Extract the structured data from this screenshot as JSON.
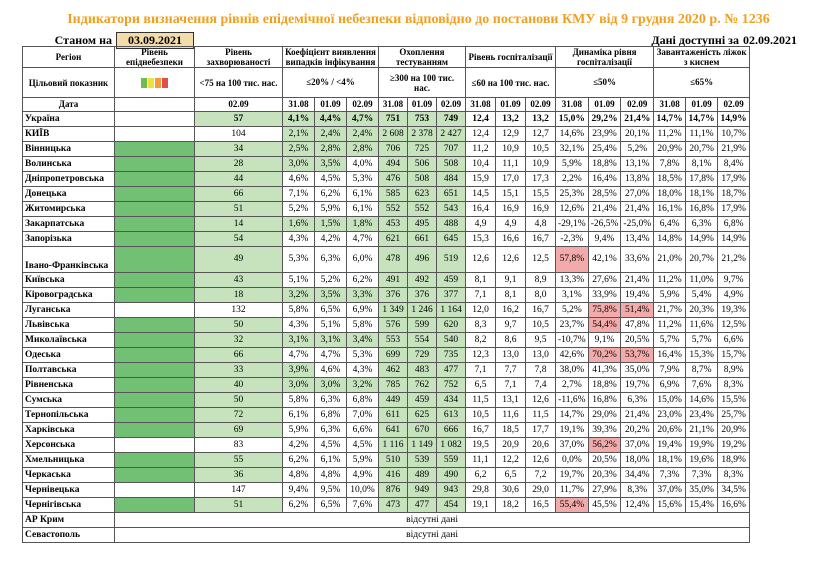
{
  "title": "Індикатори визначення рівнів епідемічної небезпеки відповідно до постанови КМУ від 9 грудня 2020 р. № 1236",
  "as_of_label": "Станом на",
  "as_of_date": "03.09.2021",
  "available_label": "Дані доступні за",
  "available_date": "02.09.2021",
  "headers": {
    "region": "Регіон",
    "level": "Рівень епіднебезпеки",
    "incidence": "Рівень захворюваності",
    "detection": "Коефіцієнт виявлення випадків інфікування",
    "testing": "Охоплення тестуванням",
    "hosp": "Рівень госпіталізації",
    "dynamics": "Динаміка рівня госпіталізації",
    "beds": "Завантаженість ліжок з киснем",
    "target_label": "Цільовий показник",
    "target_incidence": "<75 на 100 тис. нас.",
    "target_detection": "≤20% / <4%",
    "target_testing": "≥300 на 100 тис. нас.",
    "target_hosp": "≤60 на 100 тис. нас.",
    "target_dynamics": "≤50%",
    "target_beds": "≤65%",
    "date_label": "Дата",
    "inc_date": "02.09",
    "dates": [
      "31.08",
      "01.09",
      "02.09"
    ]
  },
  "indicator_colors": [
    "#6cc04a",
    "#f2e03a",
    "#f39a3a",
    "#e0504a"
  ],
  "ukraine": {
    "name": "Україна",
    "inc": "57",
    "det": [
      "4,1%",
      "4,4%",
      "4,7%"
    ],
    "test": [
      "751",
      "753",
      "749"
    ],
    "hosp": [
      "12,4",
      "13,2",
      "13,2"
    ],
    "dyn": [
      "15,0%",
      "29,2%",
      "21,4%"
    ],
    "beds": [
      "14,7%",
      "14,7%",
      "14,9%"
    ]
  },
  "regions": [
    {
      "name": "КИЇВ",
      "lvl": "gray",
      "inc": "104",
      "det": [
        "2,1%",
        "2,4%",
        "2,4%"
      ],
      "test": [
        "2 608",
        "2 378",
        "2 427"
      ],
      "hosp": [
        "12,4",
        "12,9",
        "12,7"
      ],
      "dyn": [
        "14,6%",
        "23,9%",
        "20,1%"
      ],
      "beds": [
        "11,2%",
        "11,1%",
        "10,7%"
      ]
    },
    {
      "name": "Вінницька",
      "inc": "34",
      "det": [
        "2,5%",
        "2,8%",
        "2,8%"
      ],
      "test": [
        "706",
        "725",
        "707"
      ],
      "hosp": [
        "11,2",
        "10,9",
        "10,5"
      ],
      "dyn": [
        "32,1%",
        "25,4%",
        "5,2%"
      ],
      "beds": [
        "20,9%",
        "20,7%",
        "21,9%"
      ]
    },
    {
      "name": "Волинська",
      "inc": "28",
      "det": [
        "3,0%",
        "3,5%",
        "4,0%"
      ],
      "test": [
        "494",
        "506",
        "508"
      ],
      "hosp": [
        "10,4",
        "11,1",
        "10,9"
      ],
      "dyn": [
        "5,9%",
        "18,8%",
        "13,1%"
      ],
      "beds": [
        "7,8%",
        "8,1%",
        "8,4%"
      ]
    },
    {
      "name": "Дніпропетровська",
      "inc": "44",
      "det": [
        "4,6%",
        "4,5%",
        "5,3%"
      ],
      "test": [
        "476",
        "508",
        "484"
      ],
      "hosp": [
        "15,9",
        "17,0",
        "17,3"
      ],
      "dyn": [
        "2,2%",
        "16,4%",
        "13,8%"
      ],
      "beds": [
        "18,5%",
        "17,8%",
        "17,9%"
      ]
    },
    {
      "name": "Донецька",
      "inc": "66",
      "det": [
        "7,1%",
        "6,2%",
        "6,1%"
      ],
      "test": [
        "585",
        "623",
        "651"
      ],
      "hosp": [
        "14,5",
        "15,1",
        "15,5"
      ],
      "dyn": [
        "25,3%",
        "28,5%",
        "27,0%"
      ],
      "beds": [
        "18,0%",
        "18,1%",
        "18,7%"
      ]
    },
    {
      "name": "Житомирська",
      "inc": "51",
      "det": [
        "5,2%",
        "5,9%",
        "6,1%"
      ],
      "test": [
        "552",
        "552",
        "543"
      ],
      "hosp": [
        "16,4",
        "16,9",
        "16,9"
      ],
      "dyn": [
        "12,6%",
        "21,4%",
        "21,4%"
      ],
      "beds": [
        "16,1%",
        "16,8%",
        "17,9%"
      ]
    },
    {
      "name": "Закарпатська",
      "inc": "14",
      "det": [
        "1,6%",
        "1,5%",
        "1,8%"
      ],
      "test": [
        "453",
        "495",
        "488"
      ],
      "hosp": [
        "4,9",
        "4,9",
        "4,8"
      ],
      "dyn": [
        "-29,1%",
        "-26,5%",
        "-25,0%"
      ],
      "beds": [
        "6,4%",
        "6,3%",
        "6,8%"
      ]
    },
    {
      "name": "Запорізька",
      "inc": "54",
      "det": [
        "4,3%",
        "4,2%",
        "4,7%"
      ],
      "test": [
        "621",
        "661",
        "645"
      ],
      "hosp": [
        "15,3",
        "16,6",
        "16,7"
      ],
      "dyn": [
        "-2,3%",
        "9,4%",
        "13,4%"
      ],
      "beds": [
        "14,8%",
        "14,9%",
        "14,9%"
      ]
    },
    {
      "name": "Івано-Франківська",
      "inc": "49",
      "det": [
        "5,3%",
        "6,3%",
        "6,0%"
      ],
      "test": [
        "478",
        "496",
        "519"
      ],
      "hosp": [
        "12,6",
        "12,6",
        "12,5"
      ],
      "dyn": [
        "57,8%",
        "42,1%",
        "33,6%"
      ],
      "beds": [
        "21,0%",
        "20,7%",
        "21,2%"
      ]
    },
    {
      "name": "Київська",
      "inc": "43",
      "det": [
        "5,1%",
        "5,2%",
        "6,2%"
      ],
      "test": [
        "491",
        "492",
        "459"
      ],
      "hosp": [
        "8,1",
        "9,1",
        "8,9"
      ],
      "dyn": [
        "13,3%",
        "27,6%",
        "21,4%"
      ],
      "beds": [
        "11,2%",
        "11,0%",
        "9,7%"
      ]
    },
    {
      "name": "Кіровоградська",
      "inc": "18",
      "det": [
        "3,2%",
        "3,5%",
        "3,3%"
      ],
      "test": [
        "376",
        "376",
        "377"
      ],
      "hosp": [
        "7,1",
        "8,1",
        "8,0"
      ],
      "dyn": [
        "3,1%",
        "33,9%",
        "19,4%"
      ],
      "beds": [
        "5,9%",
        "5,4%",
        "4,9%"
      ]
    },
    {
      "name": "Луганська",
      "lvl": "gray",
      "inc": "132",
      "det": [
        "5,8%",
        "6,5%",
        "6,9%"
      ],
      "test": [
        "1 349",
        "1 246",
        "1 164"
      ],
      "hosp": [
        "12,0",
        "16,2",
        "16,7"
      ],
      "dyn": [
        "5,2%",
        "75,8%",
        "51,4%"
      ],
      "beds": [
        "21,7%",
        "20,3%",
        "19,3%"
      ]
    },
    {
      "name": "Львівська",
      "inc": "50",
      "det": [
        "4,3%",
        "5,1%",
        "5,8%"
      ],
      "test": [
        "576",
        "599",
        "620"
      ],
      "hosp": [
        "8,3",
        "9,7",
        "10,5"
      ],
      "dyn": [
        "23,7%",
        "54,4%",
        "47,8%"
      ],
      "beds": [
        "11,2%",
        "11,6%",
        "12,5%"
      ]
    },
    {
      "name": "Миколаївська",
      "inc": "32",
      "det": [
        "3,1%",
        "3,1%",
        "3,4%"
      ],
      "test": [
        "553",
        "554",
        "540"
      ],
      "hosp": [
        "8,2",
        "8,6",
        "9,5"
      ],
      "dyn": [
        "-10,7%",
        "9,1%",
        "20,5%"
      ],
      "beds": [
        "5,7%",
        "5,7%",
        "6,6%"
      ]
    },
    {
      "name": "Одеська",
      "inc": "66",
      "det": [
        "4,7%",
        "4,7%",
        "5,3%"
      ],
      "test": [
        "699",
        "729",
        "735"
      ],
      "hosp": [
        "12,3",
        "13,0",
        "13,0"
      ],
      "dyn": [
        "42,6%",
        "70,2%",
        "53,7%"
      ],
      "beds": [
        "16,4%",
        "15,3%",
        "15,7%"
      ]
    },
    {
      "name": "Полтавська",
      "inc": "33",
      "det": [
        "3,9%",
        "4,6%",
        "4,3%"
      ],
      "test": [
        "462",
        "483",
        "477"
      ],
      "hosp": [
        "7,1",
        "7,7",
        "7,8"
      ],
      "dyn": [
        "38,0%",
        "41,3%",
        "35,0%"
      ],
      "beds": [
        "7,9%",
        "8,7%",
        "8,9%"
      ]
    },
    {
      "name": "Рівненська",
      "inc": "40",
      "det": [
        "3,0%",
        "3,0%",
        "3,2%"
      ],
      "test": [
        "785",
        "762",
        "752"
      ],
      "hosp": [
        "6,5",
        "7,1",
        "7,4"
      ],
      "dyn": [
        "2,7%",
        "18,8%",
        "19,7%"
      ],
      "beds": [
        "6,9%",
        "7,6%",
        "8,3%"
      ]
    },
    {
      "name": "Сумська",
      "inc": "50",
      "det": [
        "5,8%",
        "6,3%",
        "6,8%"
      ],
      "test": [
        "449",
        "459",
        "434"
      ],
      "hosp": [
        "11,5",
        "13,1",
        "12,6"
      ],
      "dyn": [
        "-11,6%",
        "16,8%",
        "6,3%"
      ],
      "beds": [
        "15,0%",
        "14,6%",
        "15,5%"
      ]
    },
    {
      "name": "Тернопільська",
      "inc": "72",
      "det": [
        "6,1%",
        "6,8%",
        "7,0%"
      ],
      "test": [
        "611",
        "625",
        "613"
      ],
      "hosp": [
        "10,5",
        "11,6",
        "11,5"
      ],
      "dyn": [
        "14,7%",
        "29,0%",
        "21,4%"
      ],
      "beds": [
        "23,0%",
        "23,4%",
        "25,7%"
      ]
    },
    {
      "name": "Харківська",
      "inc": "69",
      "det": [
        "5,9%",
        "6,3%",
        "6,6%"
      ],
      "test": [
        "641",
        "670",
        "666"
      ],
      "hosp": [
        "16,7",
        "18,5",
        "17,7"
      ],
      "dyn": [
        "19,1%",
        "39,3%",
        "20,2%"
      ],
      "beds": [
        "20,6%",
        "21,1%",
        "20,9%"
      ]
    },
    {
      "name": "Херсонська",
      "lvl": "gray",
      "inc": "83",
      "det": [
        "4,2%",
        "4,5%",
        "4,5%"
      ],
      "test": [
        "1 116",
        "1 149",
        "1 082"
      ],
      "hosp": [
        "19,5",
        "20,9",
        "20,6"
      ],
      "dyn": [
        "37,0%",
        "56,2%",
        "37,0%"
      ],
      "beds": [
        "19,4%",
        "19,9%",
        "19,2%"
      ]
    },
    {
      "name": "Хмельницька",
      "inc": "55",
      "det": [
        "6,2%",
        "6,1%",
        "5,9%"
      ],
      "test": [
        "510",
        "539",
        "559"
      ],
      "hosp": [
        "11,1",
        "12,2",
        "12,6"
      ],
      "dyn": [
        "0,0%",
        "20,5%",
        "18,0%"
      ],
      "beds": [
        "18,1%",
        "19,6%",
        "18,9%"
      ]
    },
    {
      "name": "Черкаська",
      "inc": "36",
      "det": [
        "4,8%",
        "4,8%",
        "4,9%"
      ],
      "test": [
        "416",
        "489",
        "490"
      ],
      "hosp": [
        "6,2",
        "6,5",
        "7,2"
      ],
      "dyn": [
        "19,7%",
        "20,3%",
        "34,4%"
      ],
      "beds": [
        "7,3%",
        "7,3%",
        "8,3%"
      ]
    },
    {
      "name": "Чернівецька",
      "lvl": "gray",
      "inc": "147",
      "det": [
        "9,4%",
        "9,5%",
        "10,0%"
      ],
      "test": [
        "876",
        "949",
        "943"
      ],
      "hosp": [
        "29,8",
        "30,6",
        "29,0"
      ],
      "dyn": [
        "11,7%",
        "27,9%",
        "8,3%"
      ],
      "beds": [
        "37,0%",
        "35,0%",
        "34,5%"
      ]
    },
    {
      "name": "Чернігівська",
      "inc": "51",
      "det": [
        "6,2%",
        "6,5%",
        "7,6%"
      ],
      "test": [
        "473",
        "477",
        "454"
      ],
      "hosp": [
        "19,1",
        "18,2",
        "16,5"
      ],
      "dyn": [
        "55,4%",
        "45,5%",
        "12,4%"
      ],
      "beds": [
        "15,6%",
        "15,4%",
        "16,6%"
      ]
    }
  ],
  "no_data": [
    {
      "name": "АР Крим",
      "text": "відсутні дані"
    },
    {
      "name": "Севастополь",
      "text": "відсутні дані"
    }
  ]
}
